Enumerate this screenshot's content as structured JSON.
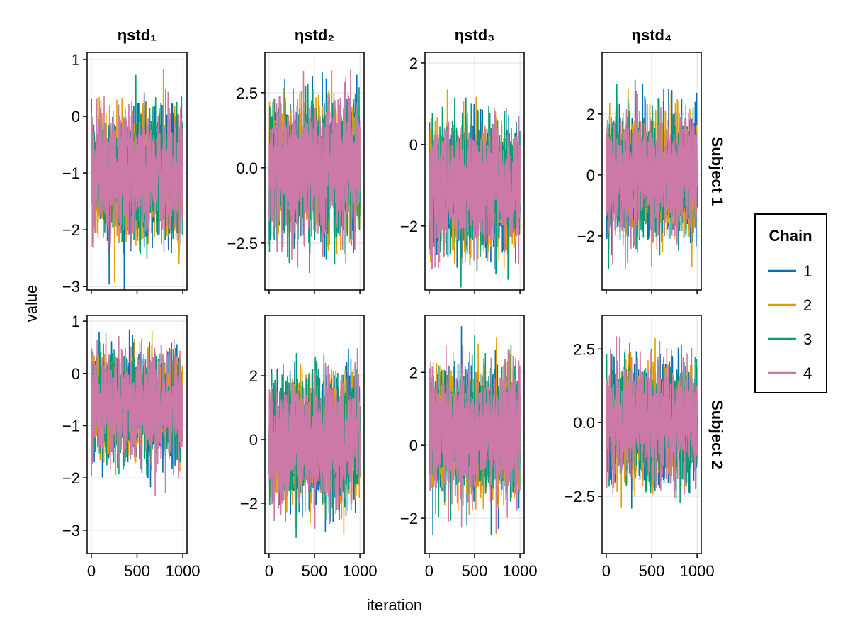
{
  "chart_data": {
    "type": "line",
    "title": "",
    "xlabel": "iteration",
    "ylabel": "value",
    "column_titles": [
      "ηstd₁",
      "ηstd₂",
      "ηstd₃",
      "ηstd₄"
    ],
    "row_titles": [
      "Subject 1",
      "Subject 2"
    ],
    "grid": true,
    "legend": {
      "title": "Chain",
      "placement": "right",
      "entries": [
        "1",
        "2",
        "3",
        "4"
      ]
    },
    "colors": [
      "#0072B2",
      "#E69F00",
      "#009E73",
      "#CC79A7"
    ],
    "x": {
      "range": [
        -46,
        1046
      ],
      "ticks": [
        0,
        500,
        1000
      ],
      "tick_labels": [
        "0",
        "500",
        "1000"
      ],
      "n_iterations": 1000
    },
    "panels": [
      {
        "row": 0,
        "col": 0,
        "ylim": [
          -3.06,
          1.125
        ],
        "yticks": [
          1,
          0,
          -1,
          -2,
          -3
        ],
        "ytick_labels": [
          "1",
          "0",
          "−1",
          "−2",
          "−3"
        ],
        "chain_mean": -1.0,
        "chain_sd": 0.5
      },
      {
        "row": 0,
        "col": 1,
        "ylim": [
          -4.06,
          3.84
        ],
        "yticks": [
          2.5,
          0,
          -2.5
        ],
        "ytick_labels": [
          "2.5",
          "0.0",
          "−2.5"
        ],
        "chain_mean": 0.0,
        "chain_sd": 1.0
      },
      {
        "row": 0,
        "col": 2,
        "ylim": [
          -3.57,
          2.26
        ],
        "yticks": [
          2,
          0,
          -2
        ],
        "ytick_labels": [
          "2",
          "0",
          "−2"
        ],
        "chain_mean": -1.0,
        "chain_sd": 0.7
      },
      {
        "row": 0,
        "col": 3,
        "ylim": [
          -3.77,
          4.02
        ],
        "yticks": [
          2,
          0,
          -2
        ],
        "ytick_labels": [
          "2",
          "0",
          "−2"
        ],
        "chain_mean": 0.0,
        "chain_sd": 0.9
      },
      {
        "row": 1,
        "col": 0,
        "ylim": [
          -3.45,
          1.11
        ],
        "yticks": [
          1,
          0,
          -1,
          -2,
          -3
        ],
        "ytick_labels": [
          "1",
          "0",
          "−1",
          "−2",
          "−3"
        ],
        "chain_mean": -0.6,
        "chain_sd": 0.45
      },
      {
        "row": 1,
        "col": 1,
        "ylim": [
          -3.58,
          3.89
        ],
        "yticks": [
          2,
          0,
          -2
        ],
        "ytick_labels": [
          "2",
          "0",
          "−2"
        ],
        "chain_mean": 0.0,
        "chain_sd": 0.9
      },
      {
        "row": 1,
        "col": 2,
        "ylim": [
          -2.97,
          3.56
        ],
        "yticks": [
          2,
          0,
          -2
        ],
        "ytick_labels": [
          "2",
          "0",
          "−2"
        ],
        "chain_mean": 0.4,
        "chain_sd": 0.8
      },
      {
        "row": 1,
        "col": 3,
        "ylim": [
          -4.45,
          3.64
        ],
        "yticks": [
          2.5,
          0,
          -2.5
        ],
        "ytick_labels": [
          "2.5",
          "0.0",
          "−2.5"
        ],
        "chain_mean": 0.0,
        "chain_sd": 0.9
      }
    ]
  }
}
